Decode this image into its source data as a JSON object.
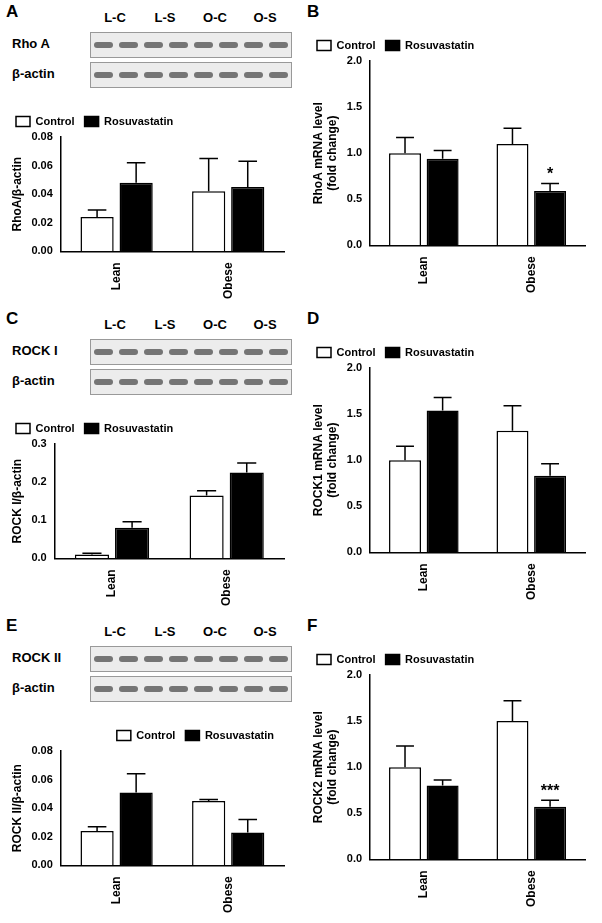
{
  "chart_data": [
    {
      "type": "bar",
      "title": "A",
      "blot": {
        "lanes": [
          "L-C",
          "L-S",
          "O-C",
          "O-S"
        ],
        "rows": [
          "Rho A",
          "β-actin"
        ]
      },
      "categories": [
        "Lean",
        "Obese"
      ],
      "series": [
        {
          "name": "Control",
          "color": "#ffffff",
          "values": [
            0.024,
            0.042
          ],
          "errors": [
            0.005,
            0.023
          ]
        },
        {
          "name": "Rosuvastatin",
          "color": "#000000",
          "values": [
            0.048,
            0.045
          ],
          "errors": [
            0.014,
            0.018
          ]
        }
      ],
      "y_label": "RhoA/β-actin",
      "ylim": [
        0,
        0.08
      ],
      "yticks": [
        {
          "value": 0,
          "label": "0.00"
        },
        {
          "value": 0.02,
          "label": "0.02"
        },
        {
          "value": 0.04,
          "label": "0.04"
        },
        {
          "value": 0.06,
          "label": "0.06"
        },
        {
          "value": 0.08,
          "label": "0.08"
        }
      ],
      "grid": false,
      "legend": "top left"
    },
    {
      "type": "bar",
      "title": "B",
      "categories": [
        "Lean",
        "Obese"
      ],
      "series": [
        {
          "name": "Control",
          "color": "#ffffff",
          "values": [
            1.0,
            1.1
          ],
          "errors": [
            0.17,
            0.17
          ]
        },
        {
          "name": "Rosuvastatin",
          "color": "#000000",
          "values": [
            0.94,
            0.59
          ],
          "errors": [
            0.09,
            0.08
          ]
        }
      ],
      "y_label": [
        "RhoA mRNA level",
        "(fold change)"
      ],
      "ylim": [
        0,
        2.0
      ],
      "yticks": [
        {
          "value": 0,
          "label": "0.0"
        },
        {
          "value": 0.5,
          "label": "0.5"
        },
        {
          "value": 1.0,
          "label": "1.0"
        },
        {
          "value": 1.5,
          "label": "1.5"
        },
        {
          "value": 2.0,
          "label": "2.0"
        }
      ],
      "annotations": [
        {
          "category": "Obese",
          "series": "Rosuvastatin",
          "text": "*"
        }
      ],
      "grid": false,
      "legend": "top left"
    },
    {
      "type": "bar",
      "title": "C",
      "blot": {
        "lanes": [
          "L-C",
          "L-S",
          "O-C",
          "O-S"
        ],
        "rows": [
          "ROCK I",
          "β-actin"
        ]
      },
      "categories": [
        "Lean",
        "Obese"
      ],
      "series": [
        {
          "name": "Control",
          "color": "#ffffff",
          "values": [
            0.01,
            0.165
          ],
          "errors": [
            0.003,
            0.012
          ]
        },
        {
          "name": "Rosuvastatin",
          "color": "#000000",
          "values": [
            0.08,
            0.225
          ],
          "errors": [
            0.016,
            0.025
          ]
        }
      ],
      "y_label": "ROCK I/β-actin",
      "ylim": [
        0,
        0.3
      ],
      "yticks": [
        {
          "value": 0,
          "label": "0.0"
        },
        {
          "value": 0.1,
          "label": "0.1"
        },
        {
          "value": 0.2,
          "label": "0.2"
        },
        {
          "value": 0.3,
          "label": "0.3"
        }
      ],
      "grid": false,
      "legend": "top left"
    },
    {
      "type": "bar",
      "title": "D",
      "categories": [
        "Lean",
        "Obese"
      ],
      "series": [
        {
          "name": "Control",
          "color": "#ffffff",
          "values": [
            1.0,
            1.32
          ],
          "errors": [
            0.15,
            0.27
          ]
        },
        {
          "name": "Rosuvastatin",
          "color": "#000000",
          "values": [
            1.54,
            0.83
          ],
          "errors": [
            0.14,
            0.13
          ]
        }
      ],
      "y_label": [
        "ROCK1 mRNA level",
        "(fold change)"
      ],
      "ylim": [
        0,
        2.0
      ],
      "yticks": [
        {
          "value": 0,
          "label": "0.0"
        },
        {
          "value": 0.5,
          "label": "0.5"
        },
        {
          "value": 1.0,
          "label": "1.0"
        },
        {
          "value": 1.5,
          "label": "1.5"
        },
        {
          "value": 2.0,
          "label": "2.0"
        }
      ],
      "grid": false,
      "legend": "top left"
    },
    {
      "type": "bar",
      "title": "E",
      "blot": {
        "lanes": [
          "L-C",
          "L-S",
          "O-C",
          "O-S"
        ],
        "rows": [
          "ROCK II",
          "β-actin"
        ]
      },
      "categories": [
        "Lean",
        "Obese"
      ],
      "series": [
        {
          "name": "Control",
          "color": "#ffffff",
          "values": [
            0.024,
            0.045
          ],
          "errors": [
            0.003,
            0.001
          ]
        },
        {
          "name": "Rosuvastatin",
          "color": "#000000",
          "values": [
            0.051,
            0.023
          ],
          "errors": [
            0.013,
            0.009
          ]
        }
      ],
      "y_label": "ROCK II/β-actin",
      "ylim": [
        0,
        0.08
      ],
      "yticks": [
        {
          "value": 0,
          "label": "0.00"
        },
        {
          "value": 0.02,
          "label": "0.02"
        },
        {
          "value": 0.04,
          "label": "0.04"
        },
        {
          "value": 0.06,
          "label": "0.06"
        },
        {
          "value": 0.08,
          "label": "0.08"
        }
      ],
      "grid": false,
      "legend": "top right"
    },
    {
      "type": "bar",
      "title": "F",
      "categories": [
        "Lean",
        "Obese"
      ],
      "series": [
        {
          "name": "Control",
          "color": "#ffffff",
          "values": [
            1.0,
            1.5
          ],
          "errors": [
            0.23,
            0.22
          ]
        },
        {
          "name": "Rosuvastatin",
          "color": "#000000",
          "values": [
            0.8,
            0.57
          ],
          "errors": [
            0.06,
            0.07
          ]
        }
      ],
      "y_label": [
        "ROCK2 mRNA level",
        "(fold change)"
      ],
      "ylim": [
        0,
        2.0
      ],
      "yticks": [
        {
          "value": 0,
          "label": "0.0"
        },
        {
          "value": 0.5,
          "label": "0.5"
        },
        {
          "value": 1.0,
          "label": "1.0"
        },
        {
          "value": 1.5,
          "label": "1.5"
        },
        {
          "value": 2.0,
          "label": "2.0"
        }
      ],
      "annotations": [
        {
          "category": "Obese",
          "series": "Rosuvastatin",
          "text": "***"
        }
      ],
      "grid": false,
      "legend": "top left"
    }
  ]
}
